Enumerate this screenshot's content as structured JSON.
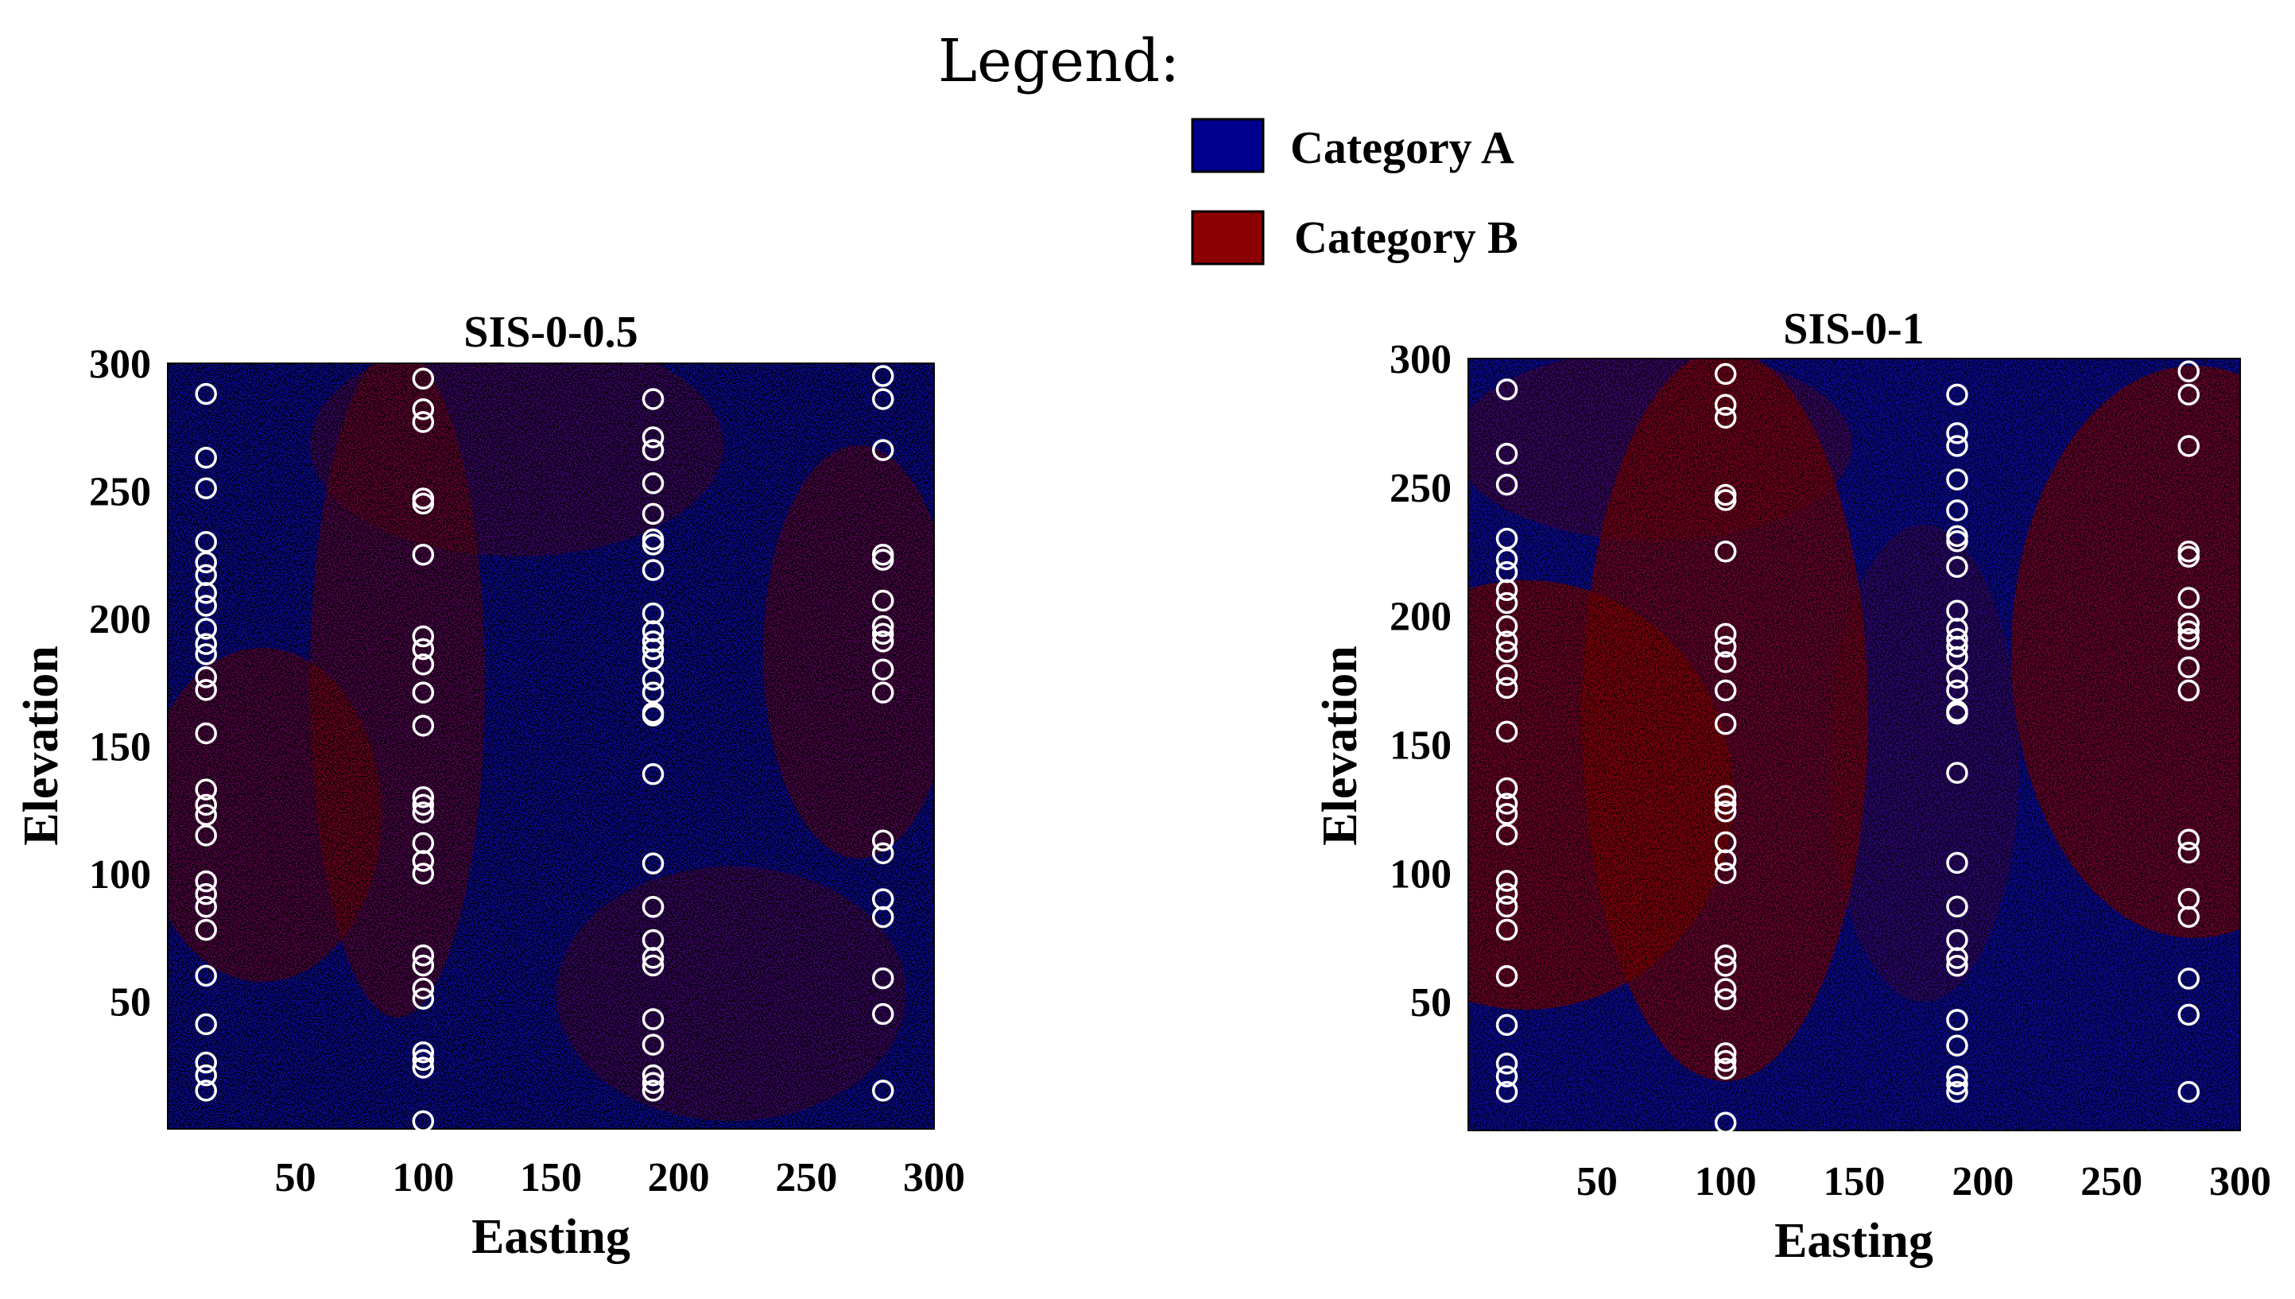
{
  "legend": {
    "title": "Legend:",
    "items": [
      {
        "label": "Category A",
        "color": "#00008f"
      },
      {
        "label": "Category B",
        "color": "#8b0000"
      }
    ]
  },
  "chart_data": [
    {
      "type": "heatmap",
      "title": "SIS-0-0.5",
      "xlabel": "Easting",
      "ylabel": "Elevation",
      "xlim": [
        0,
        300
      ],
      "ylim": [
        0,
        300
      ],
      "xticks": [
        "50",
        "100",
        "150",
        "200",
        "250",
        "300"
      ],
      "yticks": [
        "50",
        "100",
        "150",
        "200",
        "250",
        "300"
      ],
      "categories": [
        "Category A",
        "Category B"
      ],
      "marker_color": "#ffffff",
      "wells": [
        {
          "easting": 15,
          "elevations": [
            288,
            263,
            251,
            230,
            222,
            217,
            210,
            205,
            196,
            190,
            186,
            177,
            172,
            155,
            133,
            127,
            123,
            115,
            97,
            92,
            87,
            78,
            60,
            41,
            26,
            21,
            15
          ]
        },
        {
          "easting": 100,
          "elevations": [
            294,
            282,
            277,
            247,
            245,
            225,
            193,
            188,
            182,
            171,
            158,
            130,
            127,
            124,
            112,
            105,
            100,
            68,
            64,
            55,
            51,
            30,
            27,
            24,
            3
          ]
        },
        {
          "easting": 190,
          "elevations": [
            286,
            271,
            266,
            253,
            241,
            231,
            229,
            219,
            202,
            195,
            191,
            188,
            184,
            176,
            171,
            163,
            162,
            139,
            104,
            87,
            74,
            67,
            64,
            43,
            33,
            21,
            18,
            15
          ]
        },
        {
          "easting": 280,
          "elevations": [
            295,
            286,
            266,
            225,
            223,
            207,
            197,
            194,
            191,
            180,
            171,
            113,
            108,
            90,
            83,
            59,
            45,
            15
          ]
        }
      ]
    },
    {
      "type": "heatmap",
      "title": "SIS-0-1",
      "xlabel": "Easting",
      "ylabel": "Elevation",
      "xlim": [
        0,
        300
      ],
      "ylim": [
        0,
        300
      ],
      "xticks": [
        "50",
        "100",
        "150",
        "200",
        "250",
        "300"
      ],
      "yticks": [
        "50",
        "100",
        "150",
        "200",
        "250",
        "300"
      ],
      "categories": [
        "Category A",
        "Category B"
      ],
      "marker_color": "#ffffff",
      "wells": [
        {
          "easting": 15,
          "elevations": [
            288,
            263,
            251,
            230,
            222,
            217,
            210,
            205,
            196,
            190,
            186,
            177,
            172,
            155,
            133,
            127,
            123,
            115,
            97,
            92,
            87,
            78,
            60,
            41,
            26,
            21,
            15
          ]
        },
        {
          "easting": 100,
          "elevations": [
            294,
            282,
            277,
            247,
            245,
            225,
            193,
            188,
            182,
            171,
            158,
            130,
            127,
            124,
            112,
            105,
            100,
            68,
            64,
            55,
            51,
            30,
            27,
            24,
            3
          ]
        },
        {
          "easting": 190,
          "elevations": [
            286,
            271,
            266,
            253,
            241,
            231,
            229,
            219,
            202,
            195,
            191,
            188,
            184,
            176,
            171,
            163,
            162,
            139,
            104,
            87,
            74,
            67,
            64,
            43,
            33,
            21,
            18,
            15
          ]
        },
        {
          "easting": 280,
          "elevations": [
            295,
            286,
            266,
            225,
            223,
            207,
            197,
            194,
            191,
            180,
            171,
            113,
            108,
            90,
            83,
            59,
            45,
            15
          ]
        }
      ]
    }
  ]
}
